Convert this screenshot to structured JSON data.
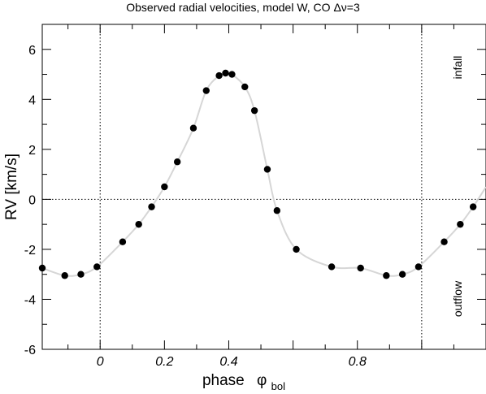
{
  "chart_data": {
    "type": "line",
    "title": "Observed radial velocities, model W, CO Δν=3",
    "xlabel": "phase",
    "xlabel_symbol": "φ",
    "xlabel_subscript": "bol",
    "ylabel": "RV  [km/s]",
    "xlim": [
      -0.18,
      1.2
    ],
    "ylim": [
      -6,
      7
    ],
    "x_ticks_labeled": [
      {
        "value": 0,
        "label": "0"
      },
      {
        "value": 0.2,
        "label": "0.2"
      },
      {
        "value": 0.4,
        "label": "0.4"
      },
      {
        "value": 0.8,
        "label": "0.8"
      }
    ],
    "y_ticks_labeled": [
      {
        "value": -6,
        "label": "-6"
      },
      {
        "value": -4,
        "label": "-4"
      },
      {
        "value": -2,
        "label": "-2"
      },
      {
        "value": 0,
        "label": "0"
      },
      {
        "value": 2,
        "label": "2"
      },
      {
        "value": 4,
        "label": "4"
      },
      {
        "value": 6,
        "label": "6"
      }
    ],
    "reference_lines": {
      "vertical": [
        0,
        1
      ],
      "horizontal": [
        0
      ]
    },
    "annotations": [
      {
        "text": "infall",
        "color": "#cc0000"
      },
      {
        "text": "outflow",
        "color": "#0000cc"
      }
    ],
    "grid": false,
    "points": [
      {
        "x": -0.18,
        "y": -2.75
      },
      {
        "x": -0.11,
        "y": -3.05
      },
      {
        "x": -0.06,
        "y": -3.0
      },
      {
        "x": -0.01,
        "y": -2.7
      },
      {
        "x": 0.07,
        "y": -1.7
      },
      {
        "x": 0.12,
        "y": -1.0
      },
      {
        "x": 0.16,
        "y": -0.3
      },
      {
        "x": 0.2,
        "y": 0.5
      },
      {
        "x": 0.24,
        "y": 1.5
      },
      {
        "x": 0.29,
        "y": 2.85
      },
      {
        "x": 0.33,
        "y": 4.35
      },
      {
        "x": 0.37,
        "y": 4.95
      },
      {
        "x": 0.39,
        "y": 5.05
      },
      {
        "x": 0.41,
        "y": 5.0
      },
      {
        "x": 0.45,
        "y": 4.5
      },
      {
        "x": 0.48,
        "y": 3.55
      },
      {
        "x": 0.52,
        "y": 1.2
      },
      {
        "x": 0.55,
        "y": -0.45
      },
      {
        "x": 0.61,
        "y": -2.0
      },
      {
        "x": 0.72,
        "y": -2.7
      },
      {
        "x": 0.81,
        "y": -2.75
      },
      {
        "x": 0.89,
        "y": -3.05
      },
      {
        "x": 0.94,
        "y": -3.0
      },
      {
        "x": 0.99,
        "y": -2.7
      },
      {
        "x": 1.07,
        "y": -1.7
      },
      {
        "x": 1.12,
        "y": -1.0
      },
      {
        "x": 1.16,
        "y": -0.3
      }
    ],
    "curve": [
      {
        "x": -0.18,
        "y": -2.75
      },
      {
        "x": -0.11,
        "y": -3.05
      },
      {
        "x": -0.06,
        "y": -3.0
      },
      {
        "x": -0.01,
        "y": -2.7
      },
      {
        "x": 0.07,
        "y": -1.7
      },
      {
        "x": 0.12,
        "y": -1.0
      },
      {
        "x": 0.16,
        "y": -0.3
      },
      {
        "x": 0.2,
        "y": 0.5
      },
      {
        "x": 0.24,
        "y": 1.5
      },
      {
        "x": 0.29,
        "y": 2.85
      },
      {
        "x": 0.33,
        "y": 4.35
      },
      {
        "x": 0.37,
        "y": 4.95
      },
      {
        "x": 0.39,
        "y": 5.05
      },
      {
        "x": 0.41,
        "y": 5.0
      },
      {
        "x": 0.45,
        "y": 4.5
      },
      {
        "x": 0.48,
        "y": 3.55
      },
      {
        "x": 0.52,
        "y": 1.2
      },
      {
        "x": 0.55,
        "y": -0.45
      },
      {
        "x": 0.61,
        "y": -2.0
      },
      {
        "x": 0.72,
        "y": -2.7
      },
      {
        "x": 0.81,
        "y": -2.75
      },
      {
        "x": 0.89,
        "y": -3.05
      },
      {
        "x": 0.94,
        "y": -3.0
      },
      {
        "x": 0.99,
        "y": -2.7
      },
      {
        "x": 1.07,
        "y": -1.7
      },
      {
        "x": 1.12,
        "y": -1.0
      },
      {
        "x": 1.16,
        "y": -0.3
      },
      {
        "x": 1.2,
        "y": 0.5
      }
    ],
    "colors": {
      "line": "#d6d6d6",
      "points": "#000000",
      "axis": "#000000"
    }
  }
}
